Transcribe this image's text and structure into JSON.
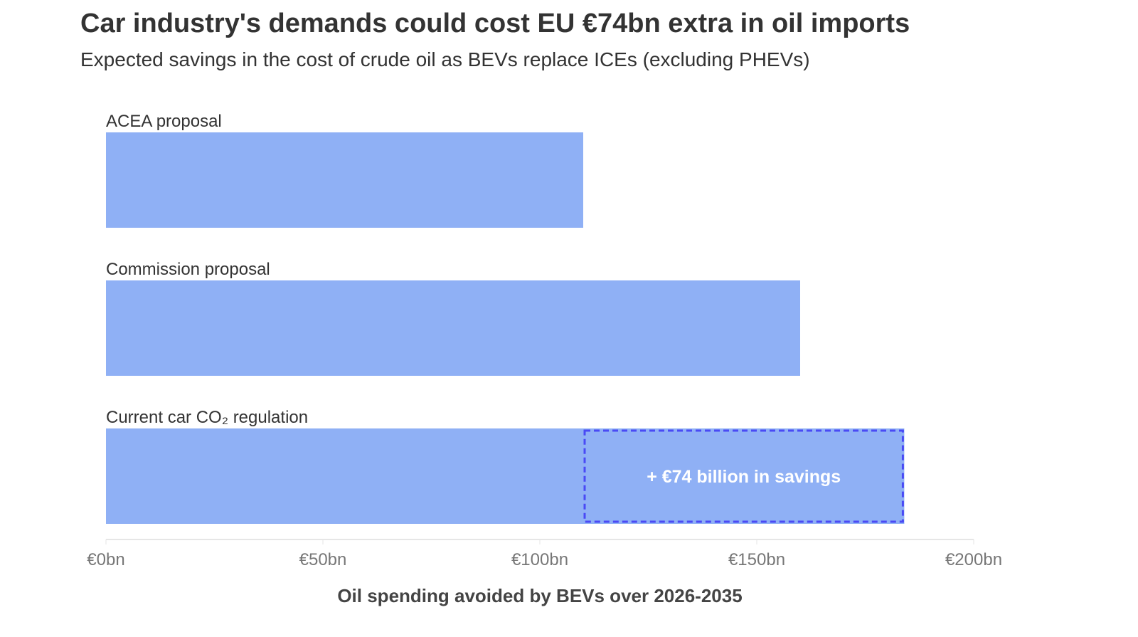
{
  "chart_data": {
    "type": "bar",
    "orientation": "horizontal",
    "title": "Car industry's demands could cost EU €74bn extra in oil imports",
    "subtitle": "Expected savings in the cost of crude oil as BEVs replace ICEs (excluding PHEVs)",
    "categories": [
      "ACEA proposal",
      "Commission proposal",
      "Current car CO₂ regulation"
    ],
    "values": [
      110,
      160,
      184
    ],
    "xlabel": "Oil spending avoided by BEVs over 2026-2035",
    "ylabel": "",
    "xlim": [
      0,
      200
    ],
    "ticks": [
      0,
      50,
      100,
      150,
      200
    ],
    "tick_labels": [
      "€0bn",
      "€50bn",
      "€100bn",
      "€150bn",
      "€200bn"
    ],
    "grid": false,
    "annotation": {
      "text": "+ €74 billion in savings",
      "from": 110,
      "to": 184,
      "category_index": 2
    },
    "colors": {
      "bar": "#8fb0f5",
      "annotation_border": "#4a4af5",
      "axis": "#e6e6e6"
    }
  }
}
